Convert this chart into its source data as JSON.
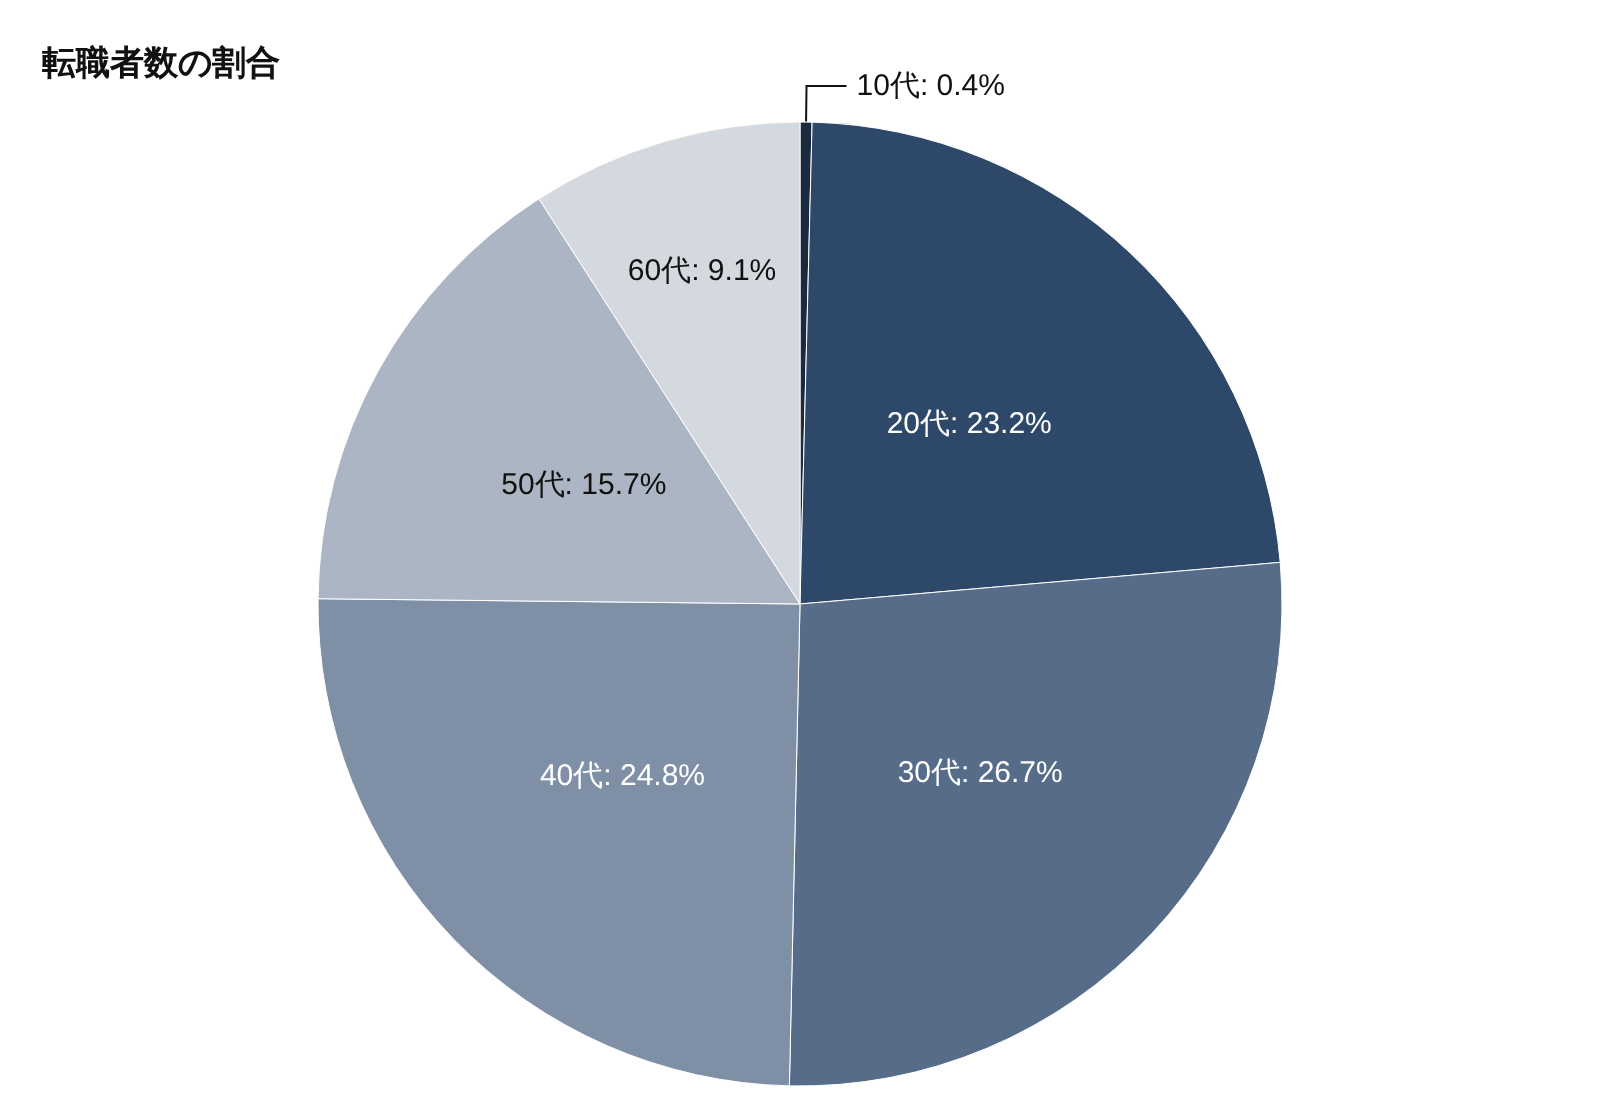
{
  "chart_data": {
    "type": "pie",
    "title": "転職者数の割合",
    "categories": [
      "10代",
      "20代",
      "30代",
      "40代",
      "50代",
      "60代"
    ],
    "values": [
      0.4,
      23.2,
      26.7,
      24.8,
      15.7,
      9.1
    ],
    "value_labels": [
      "0.4%",
      "23.2%",
      "26.7%",
      "24.8%",
      "15.7%",
      "9.1%"
    ],
    "colors": [
      "#1c2a40",
      "#2e4869",
      "#566c89",
      "#7f90a6",
      "#abb5c3",
      "#d4d9e0"
    ],
    "legend": false
  }
}
